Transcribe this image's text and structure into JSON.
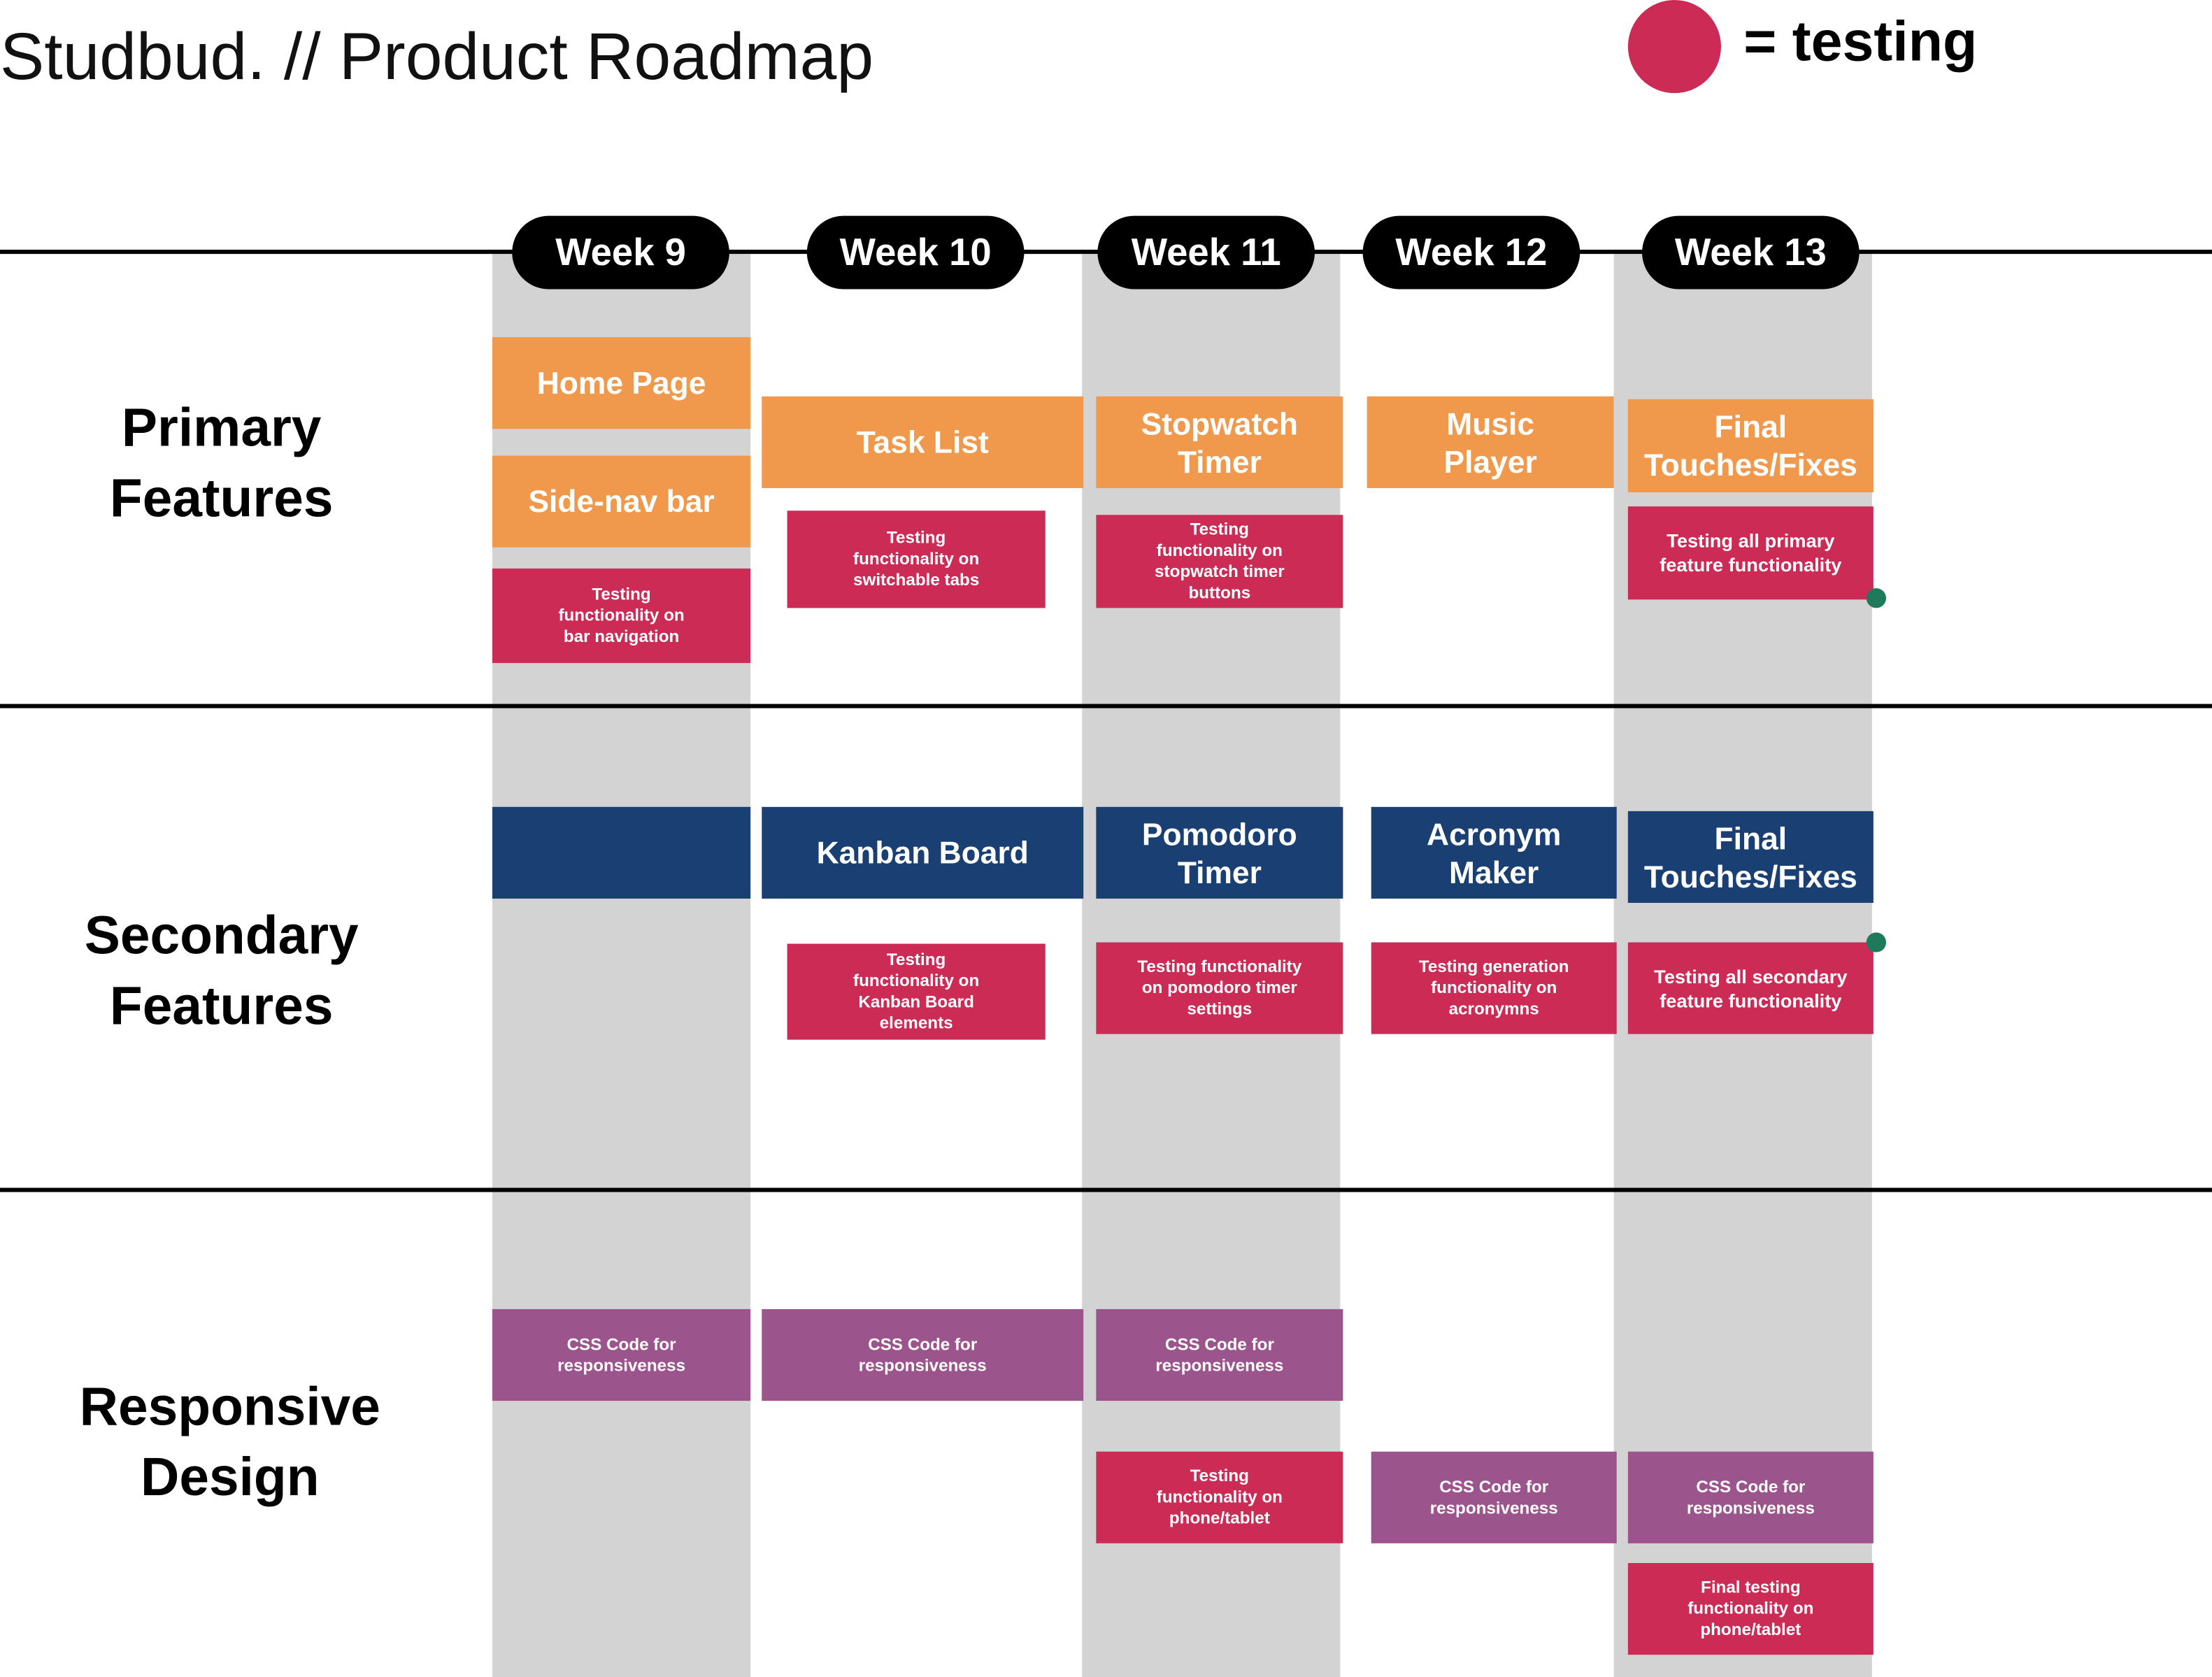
{
  "title": "Studbud. // Product Roadmap",
  "legend": {
    "label": "= testing",
    "color": "#cc2b55"
  },
  "colors": {
    "feature": "#f0994c",
    "testing": "#cc2b55",
    "secondary": "#1a3f73",
    "responsive": "#9c548c",
    "column": "#d3d3d3",
    "marker": "#1e7a5a"
  },
  "weeks": [
    "Week 9",
    "Week 10",
    "Week 11",
    "Week 12",
    "Week 13"
  ],
  "rows": [
    "Primary\nFeatures",
    "Secondary\nFeatures",
    "Responsive\nDesign"
  ],
  "primary": {
    "home_page": "Home Page",
    "side_nav": "Side-nav bar",
    "test_bar_nav": "Testing\nfunctionality on\nbar navigation",
    "task_list": "Task List",
    "test_tabs": "Testing\nfunctionality on\nswitchable tabs",
    "stopwatch": "Stopwatch\nTimer",
    "test_stopwatch": "Testing\nfunctionality on\nstopwatch timer\nbuttons",
    "music_player": "Music\nPlayer",
    "final": "Final\nTouches/Fixes",
    "test_all": "Testing all primary\nfeature functionality"
  },
  "secondary": {
    "kanban": "Kanban Board",
    "pomodoro": "Pomodoro\nTimer",
    "acronym": "Acronym\nMaker",
    "final": "Final\nTouches/Fixes",
    "test_kanban": "Testing\nfunctionality on\nKanban Board\nelements",
    "test_pomodoro": "Testing functionality\non pomodoro timer\nsettings",
    "test_acronym": "Testing generation\nfunctionality on\nacronymns",
    "test_all": "Testing all secondary\nfeature functionality"
  },
  "responsive": {
    "css_w9": "CSS Code for\nresponsiveness",
    "css_w10": "CSS Code for\nresponsiveness",
    "css_w11": "CSS Code for\nresponsiveness",
    "test_phone": "Testing\nfunctionality on\nphone/tablet",
    "css_w12": "CSS Code for\nresponsiveness",
    "css_w13": "CSS Code for\nresponsiveness",
    "final_test": "Final testing\nfunctionality on\nphone/tablet"
  }
}
